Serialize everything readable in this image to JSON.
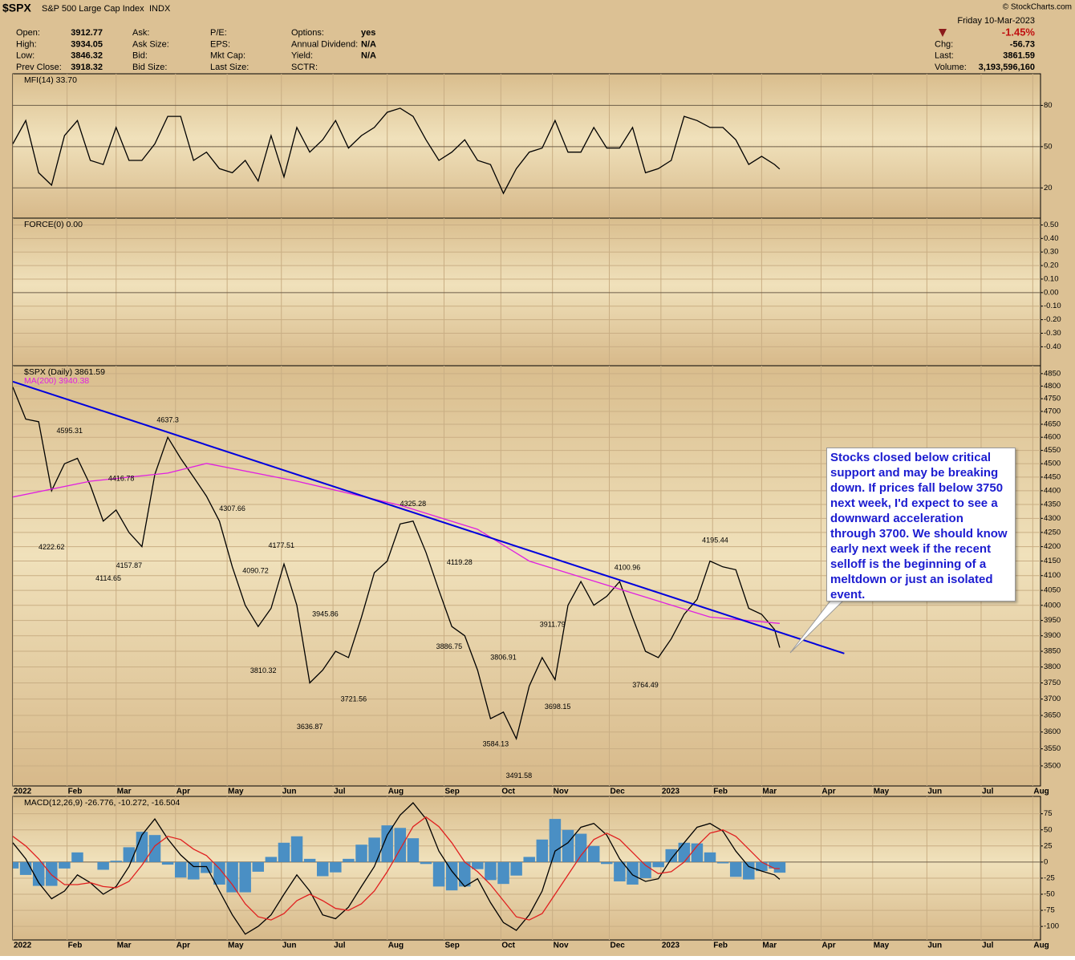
{
  "header": {
    "symbol": "$SPX",
    "name": "S&P 500 Large Cap Index",
    "exchange": "INDX",
    "copyright": "© StockCharts.com",
    "date": "Friday  10-Mar-2023",
    "change_pct": "-1.45%",
    "quote": [
      [
        "Open:",
        "3912.77"
      ],
      [
        "High:",
        "3934.05"
      ],
      [
        "Low:",
        "3846.32"
      ],
      [
        "Prev Close:",
        "3918.32"
      ]
    ],
    "market": [
      [
        "Ask:"
      ],
      [
        "Ask Size:"
      ],
      [
        "Bid:"
      ],
      [
        "Bid Size:"
      ]
    ],
    "fundamentals": [
      [
        "P/E:"
      ],
      [
        "EPS:"
      ],
      [
        "Mkt Cap:"
      ],
      [
        "Last Size:"
      ]
    ],
    "other": [
      [
        "Options:",
        "yes"
      ],
      [
        "Annual Dividend:",
        "N/A"
      ],
      [
        "Yield:",
        "N/A"
      ],
      [
        "SCTR:"
      ]
    ],
    "last": [
      [
        "Chg:",
        "-56.73"
      ],
      [
        "Last:",
        "3861.59"
      ],
      [
        "Volume:",
        "3,193,596,160"
      ]
    ]
  },
  "chart_data": [
    {
      "type": "line",
      "label": "MFI(14) 33.70",
      "xlim": [
        0,
        398
      ],
      "ylim": [
        -2,
        103
      ],
      "yticks": [
        20,
        50,
        80
      ],
      "grid": true,
      "x": [
        0,
        5,
        10,
        15,
        20,
        25,
        30,
        35,
        40,
        45,
        50,
        55,
        60,
        65,
        70,
        75,
        80,
        85,
        90,
        95,
        100,
        105,
        110,
        115,
        120,
        125,
        130,
        135,
        140,
        145,
        150,
        155,
        160,
        165,
        170,
        175,
        180,
        185,
        190,
        195,
        200,
        205,
        210,
        215,
        220,
        225,
        230,
        235,
        240,
        245,
        250,
        255,
        260,
        265,
        270,
        275,
        280,
        285,
        290,
        295,
        297
      ],
      "series": [
        {
          "color": "#000000",
          "values": [
            52,
            69,
            31,
            22,
            58,
            69,
            40,
            37,
            64,
            40,
            40,
            52,
            72,
            72,
            40,
            46,
            34,
            31,
            40,
            25,
            58,
            28,
            64,
            46,
            55,
            69,
            49,
            58,
            64,
            75,
            78,
            72,
            55,
            40,
            46,
            55,
            40,
            37,
            16,
            34,
            46,
            49,
            69,
            46,
            46,
            64,
            49,
            49,
            64,
            31,
            34,
            40,
            72,
            69,
            64,
            64,
            55,
            37,
            43,
            37,
            33.7
          ]
        }
      ]
    },
    {
      "type": "line",
      "label": "FORCE(0) 0.00",
      "xlim": [
        0,
        398
      ],
      "ylim": [
        -0.54,
        0.55
      ],
      "grid": true,
      "yticks": [
        {
          "value": 0.5,
          "label": "0.50"
        },
        {
          "value": 0.4,
          "label": "0.40"
        },
        {
          "value": 0.3,
          "label": "0.30"
        },
        {
          "value": 0.2,
          "label": "0.20"
        },
        {
          "value": 0.1,
          "label": "0.10"
        },
        {
          "value": 0,
          "label": "0.00"
        },
        {
          "value": -0.1,
          "label": "-0.10"
        },
        {
          "value": -0.2,
          "label": "-0.20"
        },
        {
          "value": -0.3,
          "label": "-0.30"
        },
        {
          "value": -0.4,
          "label": "-0.40"
        }
      ],
      "series": []
    },
    {
      "type": "line",
      "log_scale": true,
      "xlim": [
        0,
        398
      ],
      "ylim": [
        3442,
        4882
      ],
      "grid": true,
      "yticks": [
        4850,
        4800,
        4750,
        4700,
        4650,
        4600,
        4550,
        4500,
        4450,
        4400,
        4350,
        4300,
        4250,
        4200,
        4150,
        4100,
        4050,
        4000,
        3950,
        3900,
        3850,
        3800,
        3750,
        3700,
        3650,
        3600,
        3550,
        3500
      ],
      "xticks": [
        {
          "value": 0,
          "label": "2022"
        },
        {
          "value": 21,
          "label": "Feb"
        },
        {
          "value": 40,
          "label": "Mar"
        },
        {
          "value": 63,
          "label": "Apr"
        },
        {
          "value": 83,
          "label": "May"
        },
        {
          "value": 104,
          "label": "Jun"
        },
        {
          "value": 124,
          "label": "Jul"
        },
        {
          "value": 145,
          "label": "Aug"
        },
        {
          "value": 167,
          "label": "Sep"
        },
        {
          "value": 189,
          "label": "Oct"
        },
        {
          "value": 209,
          "label": "Nov"
        },
        {
          "value": 231,
          "label": "Dec"
        },
        {
          "value": 251,
          "label": "2023"
        },
        {
          "value": 271,
          "label": "Feb"
        },
        {
          "value": 290,
          "label": "Mar"
        },
        {
          "value": 313,
          "label": "Apr"
        },
        {
          "value": 333,
          "label": "May"
        },
        {
          "value": 354,
          "label": "Jun"
        },
        {
          "value": 375,
          "label": "Jul"
        },
        {
          "value": 395,
          "label": "Aug"
        }
      ],
      "x": [
        0,
        5,
        10,
        15,
        20,
        25,
        30,
        35,
        40,
        45,
        50,
        55,
        60,
        65,
        70,
        75,
        80,
        85,
        90,
        95,
        100,
        105,
        110,
        115,
        120,
        125,
        130,
        135,
        140,
        145,
        150,
        155,
        160,
        165,
        170,
        175,
        180,
        185,
        190,
        195,
        200,
        205,
        210,
        215,
        220,
        225,
        230,
        235,
        240,
        245,
        250,
        255,
        260,
        265,
        270,
        275,
        280,
        285,
        290,
        295,
        297
      ],
      "series": [
        {
          "name": "$SPX (Daily) 3861.59",
          "color": "#000000",
          "values": [
            4796,
            4670,
            4660,
            4400,
            4500,
            4520,
            4420,
            4290,
            4330,
            4250,
            4200,
            4460,
            4600,
            4520,
            4450,
            4380,
            4290,
            4130,
            4000,
            3930,
            3990,
            4140,
            4000,
            3750,
            3790,
            3850,
            3830,
            3960,
            4110,
            4150,
            4280,
            4290,
            4180,
            4050,
            3930,
            3900,
            3790,
            3640,
            3660,
            3580,
            3740,
            3830,
            3760,
            4000,
            4080,
            4000,
            4030,
            4080,
            3960,
            3850,
            3830,
            3890,
            3970,
            4020,
            4150,
            4130,
            4120,
            3990,
            3970,
            3920,
            3861.59
          ]
        },
        {
          "name": "MA(200) 3940.38",
          "color": "#e020e0",
          "x": [
            0,
            30,
            60,
            75,
            110,
            150,
            180,
            200,
            230,
            250,
            270,
            297
          ],
          "values": [
            4377,
            4435,
            4465,
            4501,
            4435,
            4347,
            4261,
            4150,
            4068,
            4014,
            3961,
            3940.38
          ]
        },
        {
          "color": "#0000dd",
          "x": [
            0,
            322
          ],
          "values": [
            4818,
            3843
          ]
        }
      ],
      "annotations": [
        {
          "x": 22,
          "value": 4595.31
        },
        {
          "x": 15,
          "value": 4222.62
        },
        {
          "x": 42,
          "value": 4416.78
        },
        {
          "x": 37,
          "value": 4114.65
        },
        {
          "x": 45,
          "value": 4157.87
        },
        {
          "x": 60,
          "value": 4637.3
        },
        {
          "x": 85,
          "value": 4307.66
        },
        {
          "x": 94,
          "value": 4090.72
        },
        {
          "x": 97,
          "value": 3810.32
        },
        {
          "x": 104,
          "value": 4177.51
        },
        {
          "x": 121,
          "value": 3945.86
        },
        {
          "x": 115,
          "value": 3636.87
        },
        {
          "x": 132,
          "value": 3721.56
        },
        {
          "x": 155,
          "value": 4325.28
        },
        {
          "x": 173,
          "value": 4119.28
        },
        {
          "x": 169,
          "value": 3886.75
        },
        {
          "x": 190,
          "value": 3806.91
        },
        {
          "x": 187,
          "value": 3584.13
        },
        {
          "x": 196,
          "value": 3491.58
        },
        {
          "x": 209,
          "value": 3911.79
        },
        {
          "x": 211,
          "value": 3698.15
        },
        {
          "x": 238,
          "value": 4100.96
        },
        {
          "x": 245,
          "value": 3764.49
        },
        {
          "x": 272,
          "value": 4195.44
        }
      ],
      "note": "Stocks closed below critical support and may be breaking down. If prices fall below 3750 next week, I'd expect to see a downward acceleration through 3700. We should know early next week if the recent selloff is the beginning of a meltdown or just an isolated event."
    },
    {
      "type": "line",
      "label": "MACD(12,26,9) -26.776, -10.272, -16.504",
      "xlim": [
        0,
        398
      ],
      "ylim": [
        -121,
        102
      ],
      "grid": true,
      "yticks": [
        75,
        50,
        25,
        0,
        -25,
        -50,
        -75,
        -100
      ],
      "xticks": [
        {
          "value": 0,
          "label": "2022"
        },
        {
          "value": 21,
          "label": "Feb"
        },
        {
          "value": 40,
          "label": "Mar"
        },
        {
          "value": 63,
          "label": "Apr"
        },
        {
          "value": 83,
          "label": "May"
        },
        {
          "value": 104,
          "label": "Jun"
        },
        {
          "value": 124,
          "label": "Jul"
        },
        {
          "value": 145,
          "label": "Aug"
        },
        {
          "value": 167,
          "label": "Sep"
        },
        {
          "value": 189,
          "label": "Oct"
        },
        {
          "value": 209,
          "label": "Nov"
        },
        {
          "value": 231,
          "label": "Dec"
        },
        {
          "value": 251,
          "label": "2023"
        },
        {
          "value": 271,
          "label": "Feb"
        },
        {
          "value": 290,
          "label": "Mar"
        },
        {
          "value": 313,
          "label": "Apr"
        },
        {
          "value": 333,
          "label": "May"
        },
        {
          "value": 354,
          "label": "Jun"
        },
        {
          "value": 375,
          "label": "Jul"
        },
        {
          "value": 395,
          "label": "Aug"
        }
      ],
      "x": [
        0,
        5,
        10,
        15,
        20,
        25,
        30,
        35,
        40,
        45,
        50,
        55,
        60,
        65,
        70,
        75,
        80,
        85,
        90,
        95,
        100,
        105,
        110,
        115,
        120,
        125,
        130,
        135,
        140,
        145,
        150,
        155,
        160,
        165,
        170,
        175,
        180,
        185,
        190,
        195,
        200,
        205,
        210,
        215,
        220,
        225,
        230,
        235,
        240,
        245,
        250,
        255,
        260,
        265,
        270,
        275,
        280,
        285,
        290,
        295,
        297
      ],
      "series": [
        {
          "type": "bar",
          "color": "#4a8fc4",
          "values": [
            -10,
            -20,
            -37,
            -37,
            -10,
            15,
            0,
            -12,
            2,
            23,
            47,
            42,
            -4,
            -24,
            -27,
            -17,
            -35,
            -47,
            -47,
            -15,
            8,
            30,
            40,
            5,
            -22,
            -16,
            5,
            27,
            38,
            57,
            53,
            37,
            -3,
            -38,
            -44,
            -38,
            -11,
            -28,
            -34,
            -21,
            8,
            35,
            67,
            50,
            44,
            25,
            -3,
            -30,
            -35,
            -25,
            -8,
            20,
            30,
            29,
            15,
            -2,
            -23,
            -27,
            -14,
            -10,
            -16.504
          ]
        },
        {
          "color": "#000000",
          "values": [
            30,
            5,
            -32,
            -57,
            -45,
            -20,
            -32,
            -50,
            -38,
            -7,
            42,
            67,
            36,
            11,
            -7,
            -7,
            -45,
            -82,
            -112,
            -100,
            -82,
            -50,
            -20,
            -45,
            -82,
            -88,
            -70,
            -38,
            -7,
            42,
            73,
            92,
            67,
            17,
            -14,
            -38,
            -26,
            -63,
            -94,
            -106,
            -82,
            -45,
            17,
            30,
            54,
            60,
            42,
            5,
            -20,
            -30,
            -26,
            5,
            30,
            54,
            60,
            48,
            17,
            -7,
            -14,
            -20,
            -26.776
          ]
        },
        {
          "color": "#e02020",
          "values": [
            40,
            25,
            5,
            -20,
            -35,
            -35,
            -32,
            -38,
            -40,
            -30,
            -5,
            25,
            40,
            35,
            20,
            10,
            -10,
            -35,
            -65,
            -85,
            -90,
            -80,
            -60,
            -50,
            -60,
            -72,
            -75,
            -65,
            -45,
            -15,
            20,
            55,
            70,
            55,
            30,
            0,
            -15,
            -35,
            -60,
            -85,
            -90,
            -80,
            -50,
            -20,
            10,
            35,
            45,
            35,
            15,
            -5,
            -18,
            -15,
            0,
            25,
            45,
            50,
            40,
            20,
            0,
            -10,
            -10.272
          ]
        }
      ]
    }
  ]
}
